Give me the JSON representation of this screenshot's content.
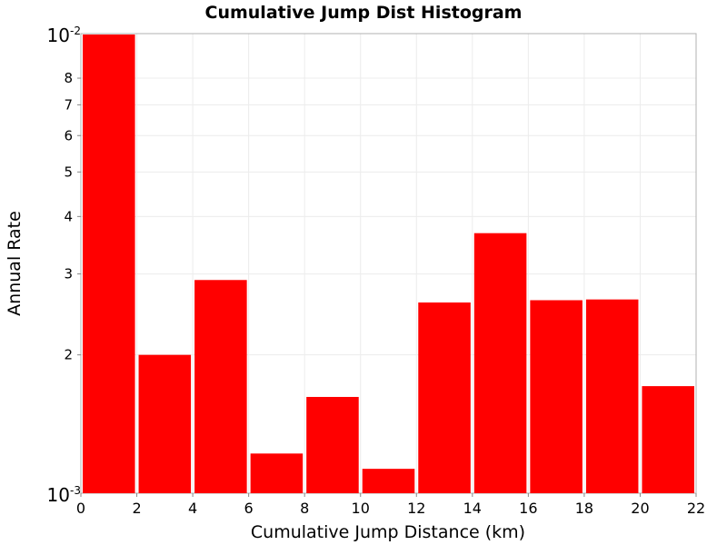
{
  "chart_data": {
    "type": "bar",
    "title": "Cumulative Jump Dist Histogram",
    "xlabel": "Cumulative Jump Distance (km)",
    "ylabel": "Annual Rate",
    "xlim": [
      0,
      22
    ],
    "ylim": [
      0.001,
      0.01
    ],
    "yscale": "log",
    "grid": true,
    "bar_color": "#ff0000",
    "x_ticks": [
      "0",
      "2",
      "4",
      "6",
      "8",
      "10",
      "12",
      "14",
      "16",
      "18",
      "20",
      "22"
    ],
    "y_ticks_minor": [
      {
        "label": "2",
        "value": 0.002
      },
      {
        "label": "3",
        "value": 0.003
      },
      {
        "label": "4",
        "value": 0.004
      },
      {
        "label": "5",
        "value": 0.005
      },
      {
        "label": "6",
        "value": 0.006
      },
      {
        "label": "7",
        "value": 0.007
      },
      {
        "label": "8",
        "value": 0.008
      }
    ],
    "y_ticks_major": [
      {
        "base": "10",
        "exp": "-3",
        "value": 0.001
      },
      {
        "base": "10",
        "exp": "-2",
        "value": 0.01
      }
    ],
    "bins": [
      {
        "x0": 0,
        "x1": 2,
        "value": 0.01
      },
      {
        "x0": 2,
        "x1": 4,
        "value": 0.002
      },
      {
        "x0": 4,
        "x1": 6,
        "value": 0.00291
      },
      {
        "x0": 6,
        "x1": 8,
        "value": 0.00122
      },
      {
        "x0": 8,
        "x1": 10,
        "value": 0.00162
      },
      {
        "x0": 10,
        "x1": 12,
        "value": 0.00113
      },
      {
        "x0": 12,
        "x1": 14,
        "value": 0.0026
      },
      {
        "x0": 14,
        "x1": 16,
        "value": 0.00368
      },
      {
        "x0": 16,
        "x1": 18,
        "value": 0.00263
      },
      {
        "x0": 18,
        "x1": 20,
        "value": 0.00264
      },
      {
        "x0": 20,
        "x1": 22,
        "value": 0.00171
      }
    ]
  }
}
